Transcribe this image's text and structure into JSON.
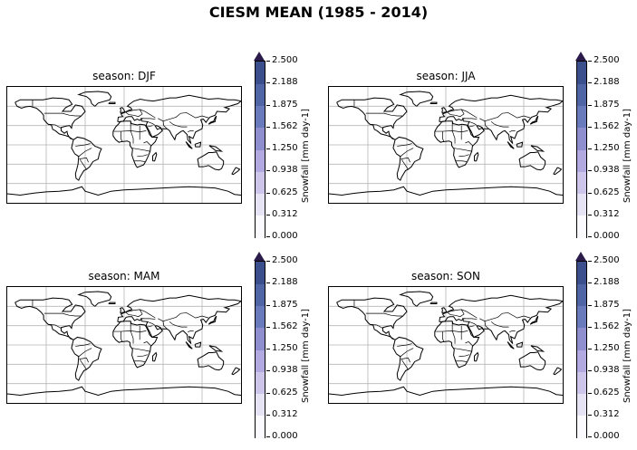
{
  "figure": {
    "title": "CIESM MEAN (1985 - 2014)"
  },
  "panels": [
    {
      "title": "season: DJF"
    },
    {
      "title": "season: JJA"
    },
    {
      "title": "season: MAM"
    },
    {
      "title": "season: SON"
    }
  ],
  "colorbar": {
    "label": "Snowfall [mm day-1]",
    "ticks": [
      "2.500",
      "2.188",
      "1.875",
      "1.562",
      "1.250",
      "0.938",
      "0.625",
      "0.312",
      "0.000"
    ],
    "levels": [
      0.0,
      0.312,
      0.625,
      0.938,
      1.25,
      1.562,
      1.875,
      2.188,
      2.5
    ],
    "extend": "max",
    "colors": [
      "#fbfaff",
      "#e6e3f4",
      "#cdc6ea",
      "#b2a9e0",
      "#8f8fd0",
      "#6a7bbd",
      "#4f65a6",
      "#3a4f8c",
      "#2b1b4a"
    ]
  },
  "map": {
    "projection": "PlateCarree",
    "gridlines": true,
    "coastlines": true,
    "borders": true,
    "field_visible": "near-zero everywhere (white)"
  }
}
